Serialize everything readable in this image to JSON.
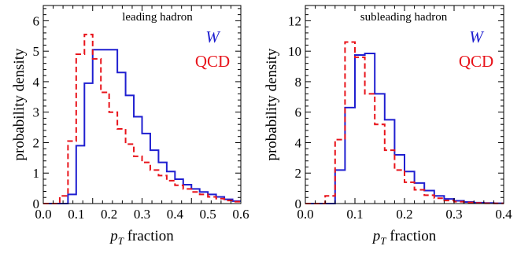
{
  "colors": {
    "W": "#1f1fd0",
    "QCD": "#e8141b",
    "axis": "#000000"
  },
  "chart_data": [
    {
      "type": "histogram",
      "title": "leading hadron",
      "xlabel": "p_T fraction",
      "xlabel_main": "p",
      "xlabel_sub": "T",
      "xlabel_rest": " fraction",
      "ylabel": "probability  density",
      "xlim": [
        0.0,
        0.6
      ],
      "ylim": [
        0,
        6.5
      ],
      "xticks": [
        0.0,
        0.1,
        0.2,
        0.3,
        0.4,
        0.5,
        0.6
      ],
      "xtick_labels": [
        "0.0",
        "0.1",
        "0.2",
        "0.3",
        "0.4",
        "0.5",
        "0.6"
      ],
      "yticks": [
        0,
        1,
        2,
        3,
        4,
        5,
        6
      ],
      "ytick_labels": [
        "0",
        "1",
        "2",
        "3",
        "4",
        "5",
        "6"
      ],
      "legend_placement": "right",
      "series": [
        {
          "name": "W",
          "style": "solid",
          "bin_edges": [
            0.0,
            0.025,
            0.05,
            0.075,
            0.1,
            0.125,
            0.15,
            0.175,
            0.2,
            0.225,
            0.25,
            0.275,
            0.3,
            0.325,
            0.35,
            0.375,
            0.4,
            0.425,
            0.45,
            0.475,
            0.5,
            0.525,
            0.55,
            0.575,
            0.6
          ],
          "values": [
            0.0,
            0.0,
            0.0,
            0.3,
            1.9,
            3.95,
            5.05,
            5.05,
            5.05,
            4.3,
            3.55,
            2.85,
            2.3,
            1.75,
            1.35,
            1.05,
            0.8,
            0.62,
            0.48,
            0.38,
            0.3,
            0.22,
            0.14,
            0.08
          ]
        },
        {
          "name": "QCD",
          "style": "dashed",
          "bin_edges": [
            0.0,
            0.025,
            0.05,
            0.075,
            0.1,
            0.125,
            0.15,
            0.175,
            0.2,
            0.225,
            0.25,
            0.275,
            0.3,
            0.325,
            0.35,
            0.375,
            0.4,
            0.425,
            0.45,
            0.475,
            0.5,
            0.525,
            0.55,
            0.575,
            0.6
          ],
          "values": [
            0.0,
            0.0,
            0.25,
            2.05,
            4.9,
            5.55,
            4.75,
            3.65,
            3.0,
            2.45,
            1.95,
            1.55,
            1.35,
            1.1,
            0.92,
            0.75,
            0.6,
            0.48,
            0.38,
            0.3,
            0.22,
            0.16,
            0.1,
            0.06
          ]
        }
      ]
    },
    {
      "type": "histogram",
      "title": "subleading hadron",
      "xlabel": "p_T fraction",
      "xlabel_main": "p",
      "xlabel_sub": "T",
      "xlabel_rest": " fraction",
      "ylabel": "probability  density",
      "xlim": [
        0.0,
        0.4
      ],
      "ylim": [
        0,
        13
      ],
      "xticks": [
        0.0,
        0.1,
        0.2,
        0.3,
        0.4
      ],
      "xtick_labels": [
        "0.0",
        "0.1",
        "0.2",
        "0.3",
        "0.4"
      ],
      "yticks": [
        0,
        2,
        4,
        6,
        8,
        10,
        12
      ],
      "ytick_labels": [
        "0",
        "2",
        "4",
        "6",
        "8",
        "10",
        "12"
      ],
      "legend_placement": "right",
      "series": [
        {
          "name": "W",
          "style": "solid",
          "bin_edges": [
            0.0,
            0.02,
            0.04,
            0.06,
            0.08,
            0.1,
            0.12,
            0.14,
            0.16,
            0.18,
            0.2,
            0.22,
            0.24,
            0.26,
            0.28,
            0.3,
            0.32,
            0.34,
            0.36,
            0.38,
            0.4
          ],
          "values": [
            0.0,
            0.0,
            0.0,
            2.2,
            6.3,
            9.75,
            9.85,
            7.2,
            5.5,
            3.2,
            2.1,
            1.35,
            0.85,
            0.5,
            0.3,
            0.18,
            0.1,
            0.06,
            0.04,
            0.02
          ]
        },
        {
          "name": "QCD",
          "style": "dashed",
          "bin_edges": [
            0.0,
            0.02,
            0.04,
            0.06,
            0.08,
            0.1,
            0.12,
            0.14,
            0.16,
            0.18,
            0.2,
            0.22,
            0.24,
            0.26,
            0.28,
            0.3,
            0.32,
            0.34,
            0.36,
            0.38,
            0.4
          ],
          "values": [
            0.0,
            0.0,
            0.5,
            4.2,
            10.6,
            9.6,
            7.2,
            5.2,
            3.5,
            2.2,
            1.4,
            0.9,
            0.55,
            0.35,
            0.2,
            0.12,
            0.07,
            0.04,
            0.02,
            0.01
          ]
        }
      ]
    }
  ]
}
